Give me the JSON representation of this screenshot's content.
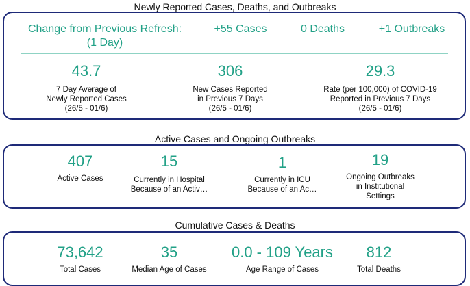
{
  "section1": {
    "title": "Newly Reported Cases, Deaths, and Outbreaks",
    "change": {
      "label_line1": "Change from Previous Refresh:",
      "label_line2": "(1 Day)",
      "cases": "+55 Cases",
      "deaths": "0 Deaths",
      "outbreaks": "+1 Outbreaks"
    },
    "metrics": [
      {
        "value": "43.7",
        "label_line1": "7 Day Average of",
        "label_line2": "Newly Reported Cases",
        "label_line3": "(26/5 - 01/6)"
      },
      {
        "value": "306",
        "label_line1": "New Cases Reported",
        "label_line2": "in Previous 7 Days",
        "label_line3": "(26/5 - 01/6)"
      },
      {
        "value": "29.3",
        "label_line1": "Rate (per 100,000) of COVID-19",
        "label_line2": "Reported in Previous 7 Days",
        "label_line3": "(26/5 - 01/6)"
      }
    ]
  },
  "section2": {
    "title": "Active Cases and Ongoing Outbreaks",
    "metrics": [
      {
        "value": "407",
        "label_line1": "Active Cases",
        "label_line2": ""
      },
      {
        "value": "15",
        "label_line1": "Currently in Hospital",
        "label_line2": "Because of an Activ…"
      },
      {
        "value": "1",
        "label_line1": "Currently in ICU",
        "label_line2": "Because of an Ac…"
      },
      {
        "value": "19",
        "label_line1": "Ongoing Outbreaks",
        "label_line2": "in Institutional",
        "label_line3": "Settings"
      }
    ]
  },
  "section3": {
    "title": "Cumulative Cases & Deaths",
    "metrics": [
      {
        "value": "73,642",
        "label": "Total Cases"
      },
      {
        "value": "35",
        "label": "Median Age of Cases"
      },
      {
        "value": "0.0 - 109 Years",
        "label": "Age Range of Cases"
      },
      {
        "value": "812",
        "label": "Total Deaths"
      }
    ]
  },
  "colors": {
    "accent": "#22a187",
    "border": "#1e2a78",
    "divider": "#8fd3c4"
  }
}
